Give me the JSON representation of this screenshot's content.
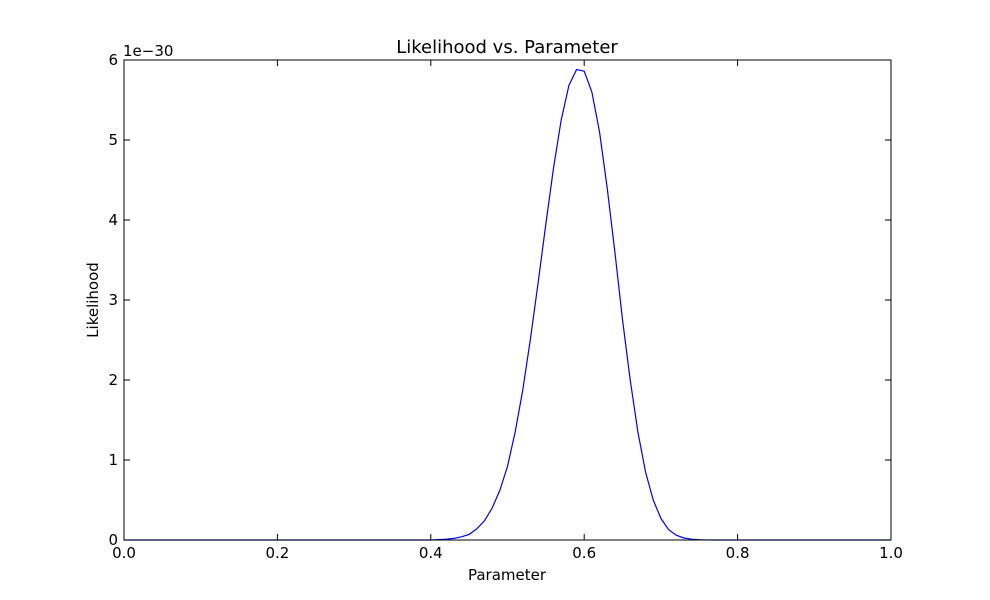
{
  "chart_data": {
    "type": "line",
    "title": "Likelihood vs. Parameter",
    "xlabel": "Parameter",
    "ylabel": "Likelihood",
    "y_multiplier_label": "1e−30",
    "xlim": [
      0.0,
      1.0
    ],
    "ylim": [
      0,
      6
    ],
    "y_scale_factor": 1e-30,
    "xticks": [
      0.0,
      0.2,
      0.4,
      0.6,
      0.8,
      1.0
    ],
    "xtick_labels": [
      "0.0",
      "0.2",
      "0.4",
      "0.6",
      "0.8",
      "1.0"
    ],
    "yticks": [
      0,
      1,
      2,
      3,
      4,
      5,
      6
    ],
    "ytick_labels": [
      "0",
      "1",
      "2",
      "3",
      "4",
      "5",
      "6"
    ],
    "grid": false,
    "series": [
      {
        "color": "#0000ff",
        "x": [
          0.0,
          0.3,
          0.35,
          0.4,
          0.41,
          0.42,
          0.43,
          0.44,
          0.45,
          0.46,
          0.47,
          0.48,
          0.49,
          0.5,
          0.51,
          0.52,
          0.53,
          0.54,
          0.55,
          0.56,
          0.57,
          0.58,
          0.59,
          0.6,
          0.61,
          0.62,
          0.63,
          0.64,
          0.65,
          0.66,
          0.67,
          0.68,
          0.69,
          0.7,
          0.71,
          0.72,
          0.73,
          0.74,
          0.75,
          0.76,
          0.77,
          0.78,
          0.8,
          0.85,
          1.0
        ],
        "y": [
          0.0,
          0.0,
          0.0,
          0.0,
          0.005,
          0.01,
          0.02,
          0.04,
          0.07,
          0.14,
          0.24,
          0.4,
          0.62,
          0.92,
          1.35,
          1.88,
          2.52,
          3.22,
          3.95,
          4.65,
          5.25,
          5.68,
          5.88,
          5.86,
          5.6,
          5.1,
          4.4,
          3.6,
          2.75,
          2.0,
          1.35,
          0.85,
          0.5,
          0.27,
          0.13,
          0.06,
          0.025,
          0.01,
          0.004,
          0.001,
          0.0,
          0.0,
          0.0,
          0.0,
          0.0
        ]
      }
    ]
  }
}
